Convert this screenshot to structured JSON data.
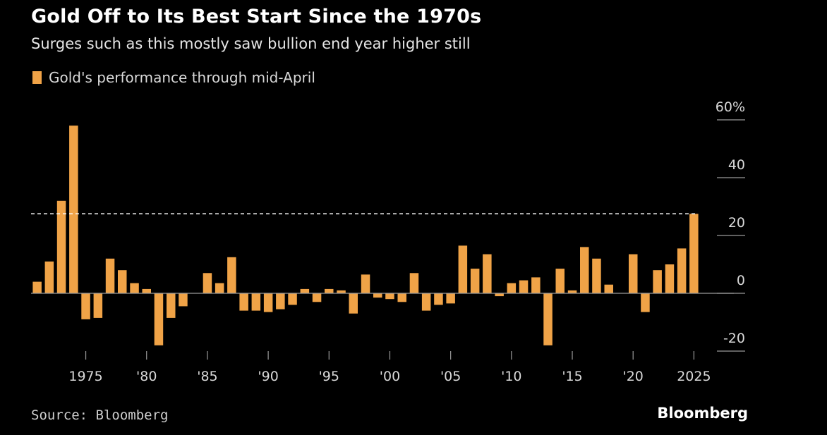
{
  "header": {
    "title": "Gold Off to Its Best Start Since the 1970s",
    "subtitle": "Surges such as this mostly saw bullion end year higher still"
  },
  "legend": {
    "label": "Gold's performance through mid-April"
  },
  "footer": {
    "source": "Source: Bloomberg",
    "brand": "Bloomberg"
  },
  "colors": {
    "bar": "#f0a347",
    "background": "#000000",
    "axis": "#9a9a9a",
    "reference_line": "#ffffff"
  },
  "chart_data": {
    "type": "bar",
    "title": "Gold Off to Its Best Start Since the 1970s",
    "subtitle": "Surges such as this mostly saw bullion end year higher still",
    "series": [
      {
        "name": "Gold's performance through mid-April",
        "x": [
          1971,
          1972,
          1973,
          1974,
          1975,
          1976,
          1977,
          1978,
          1979,
          1980,
          1981,
          1982,
          1983,
          1984,
          1985,
          1986,
          1987,
          1988,
          1989,
          1990,
          1991,
          1992,
          1993,
          1994,
          1995,
          1996,
          1997,
          1998,
          1999,
          2000,
          2001,
          2002,
          2003,
          2004,
          2005,
          2006,
          2007,
          2008,
          2009,
          2010,
          2011,
          2012,
          2013,
          2014,
          2015,
          2016,
          2017,
          2018,
          2019,
          2020,
          2021,
          2022,
          2023,
          2024,
          2025
        ],
        "values": [
          4,
          11,
          32,
          58,
          -9,
          -8.5,
          12,
          8,
          3.5,
          1.5,
          -18,
          -8.5,
          -4.5,
          0,
          7,
          3.5,
          12.5,
          -6,
          -6,
          -6.5,
          -5.5,
          -4,
          1.5,
          -3,
          1.5,
          1,
          -7,
          6.5,
          -1.5,
          -2,
          -3,
          7,
          -6,
          -4,
          -3.5,
          16.5,
          8.5,
          13.5,
          -1,
          3.5,
          4.5,
          5.5,
          -18,
          8.5,
          1,
          16,
          12,
          3,
          0,
          13.5,
          -6.5,
          8,
          10,
          15.5,
          27.5
        ]
      }
    ],
    "x_tick_labels": [
      "1975",
      "'80",
      "'85",
      "'90",
      "'95",
      "'00",
      "'05",
      "'10",
      "'15",
      "'20",
      "2025"
    ],
    "x_tick_years": [
      1975,
      1980,
      1985,
      1990,
      1995,
      2000,
      2005,
      2010,
      2015,
      2020,
      2025
    ],
    "y_tick_labels": [
      "60%",
      "40",
      "20",
      "0",
      "-20"
    ],
    "y_ticks": [
      60,
      40,
      20,
      0,
      -20
    ],
    "ylim": [
      -20,
      60
    ],
    "xlim": [
      1970.5,
      2025.5
    ],
    "reference_line": {
      "value": 27.5,
      "style": "dashed"
    },
    "xlabel": "",
    "ylabel": "",
    "legend_position": "top-left"
  }
}
